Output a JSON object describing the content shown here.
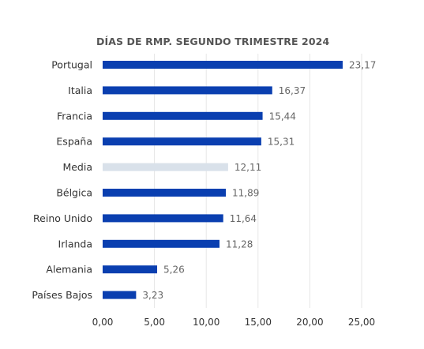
{
  "chart_data": {
    "type": "bar",
    "orientation": "horizontal",
    "title": "DÍAS DE RMP. SEGUNDO TRIMESTRE 2024",
    "categories": [
      "Portugal",
      "Italia",
      "Francia",
      "España",
      "Media",
      "Bélgica",
      "Reino Unido",
      "Irlanda",
      "Alemania",
      "Países Bajos"
    ],
    "values": [
      23.17,
      16.37,
      15.44,
      15.31,
      12.11,
      11.89,
      11.64,
      11.28,
      5.26,
      3.23
    ],
    "value_labels": [
      "23,17",
      "16,37",
      "15,44",
      "15,31",
      "12,11",
      "11,89",
      "11,64",
      "11,28",
      "5,26",
      "3,23"
    ],
    "highlight": "Media",
    "xlim": [
      0,
      25
    ],
    "x_ticks": [
      0,
      5,
      10,
      15,
      20,
      25
    ],
    "x_tick_labels": [
      "0,00",
      "5,00",
      "10,00",
      "15,00",
      "20,00",
      "25,00"
    ],
    "grid": "vertical",
    "legend": "none",
    "xlabel": "",
    "ylabel": "",
    "colors": {
      "bar": "#0a3fb0",
      "highlight_bar": "#d9e1ea",
      "grid": "#e6e6e6",
      "label_text": "#333333",
      "value_text": "#666666",
      "title_text": "#555555"
    }
  }
}
